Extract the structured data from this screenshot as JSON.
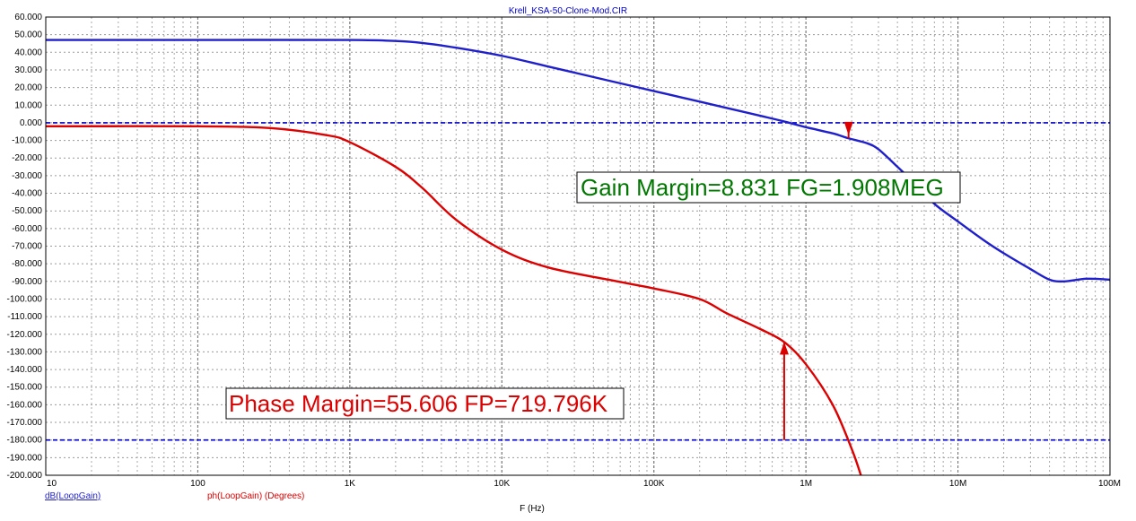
{
  "chart_data": {
    "type": "line",
    "title": "Krell_KSA-50-Clone-Mod.CIR",
    "xlabel": "F (Hz)",
    "x_scale": "log",
    "xlim": [
      10,
      100000000
    ],
    "ylim": [
      -200,
      60
    ],
    "grid": true,
    "x_tick_labels": [
      "10",
      "100",
      "1K",
      "10K",
      "100K",
      "1M",
      "10M",
      "100M"
    ],
    "y_tick_labels": [
      "60.000",
      "50.000",
      "40.000",
      "30.000",
      "20.000",
      "10.000",
      "0.000",
      "-10.000",
      "-20.000",
      "-30.000",
      "-40.000",
      "-50.000",
      "-60.000",
      "-70.000",
      "-80.000",
      "-90.000",
      "-100.000",
      "-110.000",
      "-120.000",
      "-130.000",
      "-140.000",
      "-150.000",
      "-160.000",
      "-170.000",
      "-180.000",
      "-190.000",
      "-200.000"
    ],
    "series": [
      {
        "name": "dB(LoopGain)",
        "color": "#1f1fcc",
        "x": [
          10,
          100,
          1000,
          2000,
          3000,
          5000,
          10000,
          20000,
          50000,
          100000,
          200000,
          500000,
          700000,
          1000000,
          1500000,
          1908000,
          2500000,
          3000000,
          4000000,
          5000000,
          7000000,
          10000000,
          15000000,
          20000000,
          30000000,
          40000000,
          50000000,
          70000000,
          100000000
        ],
        "y": [
          47,
          47,
          47,
          46.4,
          45.3,
          42.6,
          38,
          32,
          24,
          18,
          12,
          4,
          1,
          -2.5,
          -6,
          -8.831,
          -11.5,
          -15,
          -25,
          -33,
          -46,
          -56,
          -67,
          -74,
          -83,
          -89,
          -90,
          -88.5,
          -89
        ]
      },
      {
        "name": "ph(LoopGain) (Degrees)",
        "color": "#dd0000",
        "x": [
          10,
          100,
          300,
          700,
          1000,
          2000,
          3000,
          5000,
          10000,
          20000,
          50000,
          100000,
          200000,
          300000,
          500000,
          719796,
          1000000,
          1500000,
          2000000,
          2300000
        ],
        "y": [
          -2,
          -2,
          -3,
          -7,
          -11,
          -25,
          -37,
          -55,
          -72,
          -82,
          -89,
          -94,
          -100,
          -108,
          -117,
          -124.4,
          -137,
          -160,
          -185,
          -200
        ]
      },
      {
        "name": "",
        "color": "#0000cc",
        "x": [
          10,
          100000000
        ],
        "y": [
          0,
          0
        ]
      },
      {
        "name": "",
        "color": "#0000cc",
        "x": [
          10,
          100000000
        ],
        "y": [
          -180,
          -180
        ]
      }
    ],
    "annotations": [
      {
        "text": "Gain Margin=8.831 FG=1.908MEG",
        "color": "#007700"
      },
      {
        "text": "Phase Margin=55.606 FP=719.796K",
        "color": "#dd0000"
      }
    ],
    "markers": {
      "gain_margin": {
        "x": 1908000,
        "y_from": 0,
        "y_to": -8.831,
        "color": "#dd0000"
      },
      "phase_margin": {
        "x": 719796,
        "y_from": -180,
        "y_to": -124.4,
        "color": "#dd0000"
      }
    }
  },
  "legend": {
    "gain": "dB(LoopGain)",
    "phase": "ph(LoopGain) (Degrees)"
  }
}
